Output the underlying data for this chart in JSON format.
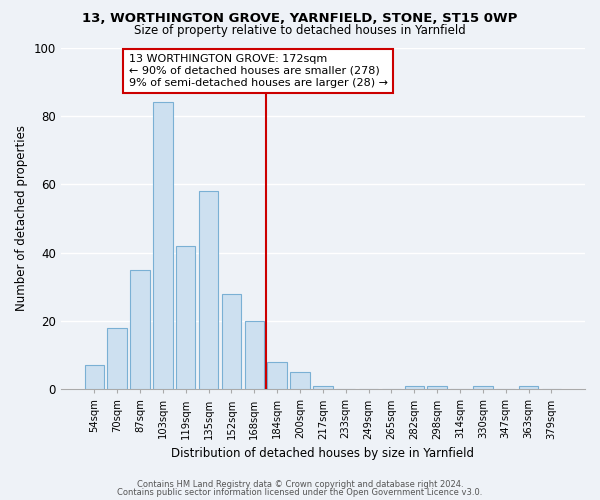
{
  "title1": "13, WORTHINGTON GROVE, YARNFIELD, STONE, ST15 0WP",
  "title2": "Size of property relative to detached houses in Yarnfield",
  "xlabel": "Distribution of detached houses by size in Yarnfield",
  "ylabel": "Number of detached properties",
  "bar_color": "#cde0f0",
  "bar_edge_color": "#7ab0d4",
  "bin_labels": [
    "54sqm",
    "70sqm",
    "87sqm",
    "103sqm",
    "119sqm",
    "135sqm",
    "152sqm",
    "168sqm",
    "184sqm",
    "200sqm",
    "217sqm",
    "233sqm",
    "249sqm",
    "265sqm",
    "282sqm",
    "298sqm",
    "314sqm",
    "330sqm",
    "347sqm",
    "363sqm",
    "379sqm"
  ],
  "bar_values": [
    7,
    18,
    35,
    84,
    42,
    58,
    28,
    20,
    8,
    5,
    1,
    0,
    0,
    0,
    1,
    1,
    0,
    1,
    0,
    1,
    0
  ],
  "ylim": [
    0,
    100
  ],
  "yticks": [
    0,
    20,
    40,
    60,
    80,
    100
  ],
  "vline_x": 7.5,
  "vline_color": "#cc0000",
  "annotation_title": "13 WORTHINGTON GROVE: 172sqm",
  "annotation_line1": "← 90% of detached houses are smaller (278)",
  "annotation_line2": "9% of semi-detached houses are larger (28) →",
  "annotation_box_color": "#ffffff",
  "annotation_box_edge": "#cc0000",
  "footer1": "Contains HM Land Registry data © Crown copyright and database right 2024.",
  "footer2": "Contains public sector information licensed under the Open Government Licence v3.0.",
  "background_color": "#eef2f7"
}
